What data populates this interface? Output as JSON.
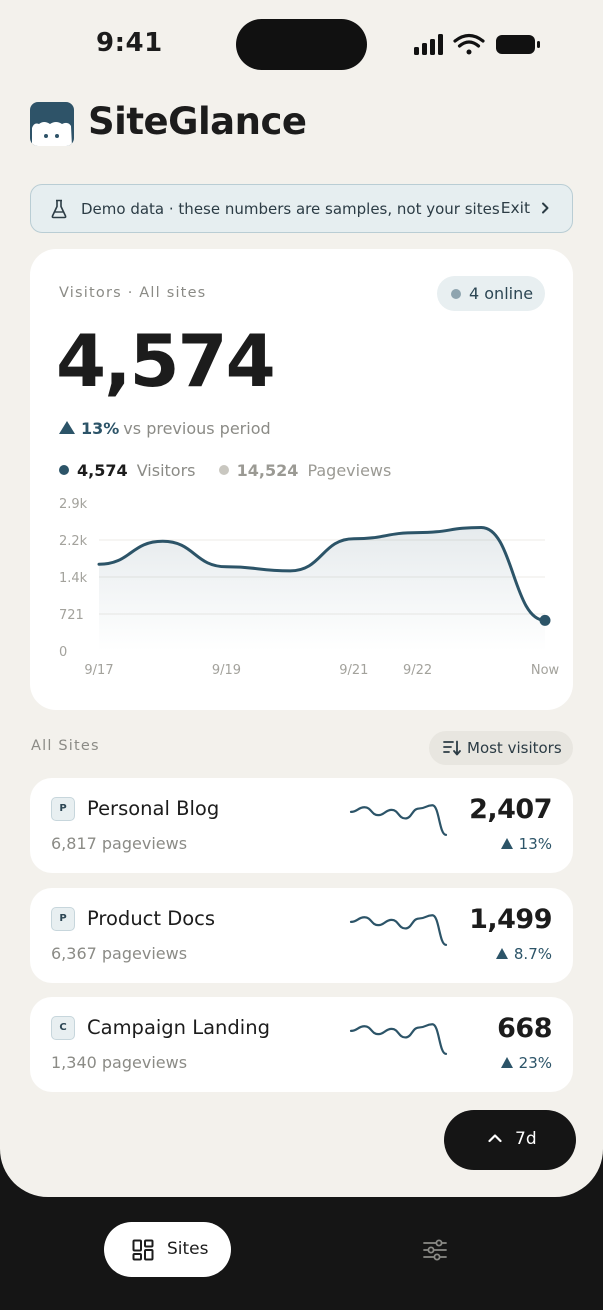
{
  "status_bar": {
    "time": "9:41"
  },
  "app": {
    "title": "SiteGlance"
  },
  "banner": {
    "text": "Demo data · these numbers are samples, not your sites",
    "exit_label": "Exit"
  },
  "overview": {
    "label": "Visitors · All sites",
    "online": "4 online",
    "visitors_total": "4,574",
    "delta_pct": "13%",
    "delta_text": "vs previous period",
    "legend": [
      {
        "value": "4,574",
        "name": "Visitors",
        "color": "#2c5468"
      },
      {
        "value": "14,524",
        "name": "Pageviews",
        "color": "#c9c7c0"
      }
    ]
  },
  "chart_data": {
    "type": "area",
    "title": "",
    "xlabel": "",
    "ylabel": "",
    "y_ticks": [
      "2.9k",
      "2.2k",
      "1.4k",
      "721",
      "0"
    ],
    "x_tick_labels": [
      "9/17",
      "9/19",
      "9/21",
      "9/22",
      "Now"
    ],
    "ylim": [
      0,
      2900
    ],
    "grid": true,
    "series": [
      {
        "name": "Visitors",
        "color": "#2c5468",
        "x": [
          "9/17",
          "9/18",
          "9/19",
          "9/20",
          "9/21",
          "9/22",
          "9/23",
          "Now"
        ],
        "values": [
          1700,
          2150,
          1650,
          1570,
          2200,
          2320,
          2420,
          600
        ]
      }
    ]
  },
  "sites": {
    "section_label": "All Sites",
    "sort_label": "Most visitors",
    "items": [
      {
        "badge": "P",
        "name": "Personal Blog",
        "pageviews": "6,817 pageviews",
        "visitors": "2,407",
        "delta": "13%",
        "spark": [
          55,
          62,
          50,
          58,
          45,
          60,
          65,
          20
        ]
      },
      {
        "badge": "P",
        "name": "Product Docs",
        "pageviews": "6,367 pageviews",
        "visitors": "1,499",
        "delta": "8.7%",
        "spark": [
          55,
          62,
          50,
          58,
          45,
          60,
          65,
          20
        ]
      },
      {
        "badge": "C",
        "name": "Campaign Landing",
        "pageviews": "1,340 pageviews",
        "visitors": "668",
        "delta": "23%",
        "spark": [
          55,
          62,
          50,
          58,
          45,
          60,
          65,
          20
        ]
      }
    ]
  },
  "period": {
    "label": "7d"
  },
  "tabbar": {
    "sites_label": "Sites"
  },
  "colors": {
    "accent": "#2c5468",
    "background": "#f3f1ec",
    "dark": "#151515"
  }
}
